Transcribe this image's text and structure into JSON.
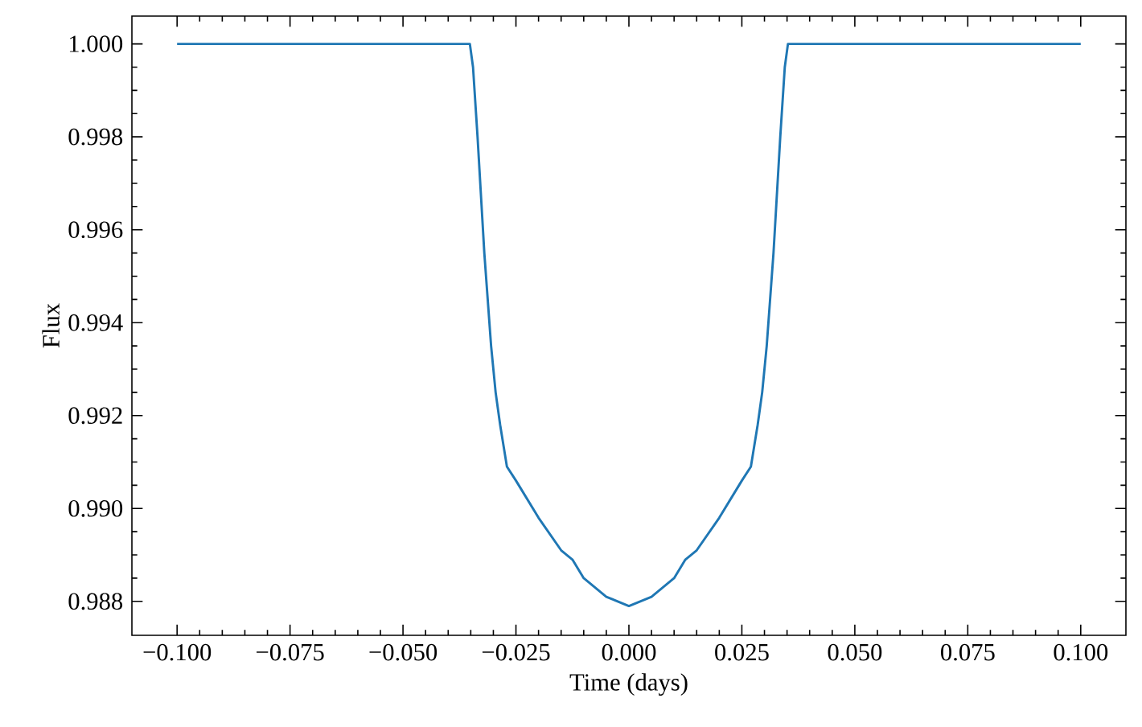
{
  "chart_data": {
    "type": "line",
    "xlabel": "Time (days)",
    "ylabel": "Flux",
    "x": [
      -0.1,
      -0.06,
      -0.04,
      -0.0352,
      -0.0345,
      -0.0335,
      -0.032,
      -0.0305,
      -0.0295,
      -0.0285,
      -0.027,
      -0.025,
      -0.02,
      -0.015,
      -0.0125,
      -0.01,
      -0.005,
      0,
      0.005,
      0.01,
      0.0125,
      0.015,
      0.02,
      0.025,
      0.027,
      0.0285,
      0.0295,
      0.0305,
      0.032,
      0.0335,
      0.0345,
      0.0352,
      0.04,
      0.06,
      0.1
    ],
    "series": [
      {
        "color": "#1f77b4",
        "values": [
          1.0,
          1.0,
          1.0,
          1.0,
          0.9995,
          0.998,
          0.9955,
          0.9935,
          0.9925,
          0.9918,
          0.9909,
          0.9906,
          0.9898,
          0.9891,
          0.9889,
          0.9885,
          0.9881,
          0.9879,
          0.9881,
          0.9885,
          0.9889,
          0.9891,
          0.9898,
          0.9906,
          0.9909,
          0.9918,
          0.9925,
          0.9935,
          0.9955,
          0.998,
          0.9995,
          1.0,
          1.0,
          1.0,
          1.0
        ]
      }
    ],
    "marker": "none",
    "line_style": "solid",
    "xlim": [
      -0.11,
      0.11
    ],
    "ylim": [
      0.98727,
      1.0006
    ],
    "xticks": [
      {
        "value": -0.1,
        "label": "−0.100"
      },
      {
        "value": -0.075,
        "label": "−0.075"
      },
      {
        "value": -0.05,
        "label": "−0.050"
      },
      {
        "value": -0.025,
        "label": "−0.025"
      },
      {
        "value": 0,
        "label": "0.000"
      },
      {
        "value": 0.025,
        "label": "0.025"
      },
      {
        "value": 0.05,
        "label": "0.050"
      },
      {
        "value": 0.075,
        "label": "0.075"
      },
      {
        "value": 0.1,
        "label": "0.100"
      }
    ],
    "yticks": [
      {
        "value": 0.988,
        "label": "0.988"
      },
      {
        "value": 0.99,
        "label": "0.990"
      },
      {
        "value": 0.992,
        "label": "0.992"
      },
      {
        "value": 0.994,
        "label": "0.994"
      },
      {
        "value": 0.996,
        "label": "0.996"
      },
      {
        "value": 0.998,
        "label": "0.998"
      },
      {
        "value": 1.0,
        "label": "1.000"
      }
    ]
  }
}
